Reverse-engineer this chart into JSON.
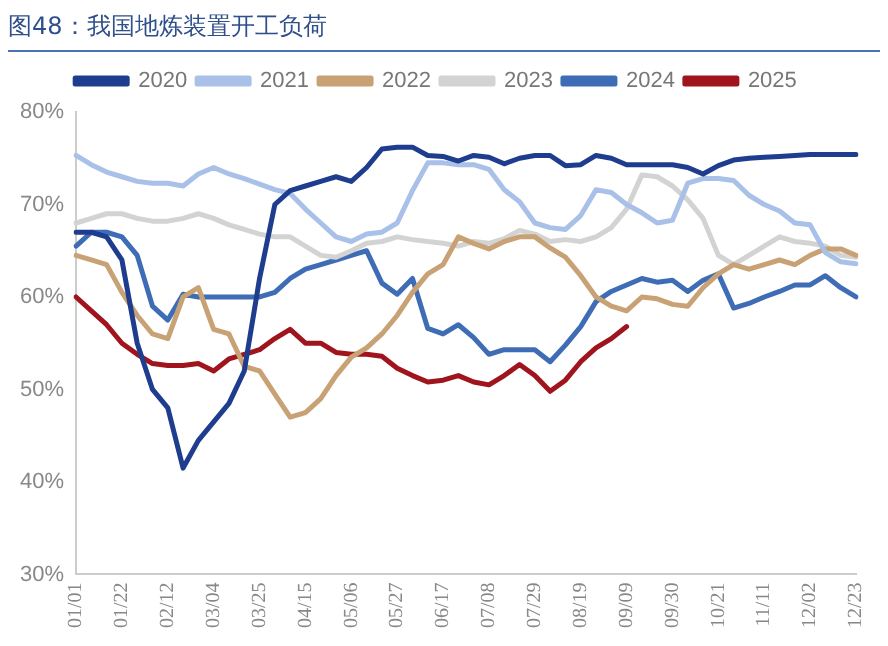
{
  "chart_data": {
    "type": "line",
    "title": "图48：我国地炼装置开工负荷",
    "categories": [
      "01/01",
      null,
      null,
      "01/22",
      null,
      null,
      "02/12",
      null,
      null,
      "03/04",
      null,
      null,
      "03/25",
      null,
      null,
      "04/15",
      null,
      null,
      "05/06",
      null,
      null,
      "05/27",
      null,
      null,
      "06/17",
      null,
      null,
      "07/08",
      null,
      null,
      "07/29",
      null,
      null,
      "08/19",
      null,
      null,
      "09/09",
      null,
      null,
      "09/30",
      null,
      null,
      "10/21",
      null,
      null,
      "11/11",
      null,
      null,
      "12/02",
      null,
      null,
      "12/23"
    ],
    "series": [
      {
        "name": "2020",
        "color": "#1f3d8f",
        "values": [
          67,
          67,
          66.5,
          64,
          55,
          50,
          48,
          41.5,
          44.5,
          46.5,
          48.5,
          52,
          62,
          70,
          71.5,
          72,
          72.5,
          73,
          72.5,
          74,
          76,
          76.2,
          76.2,
          75.3,
          75.2,
          74.7,
          75.3,
          75.1,
          74.4,
          75,
          75.3,
          75.3,
          74.2,
          74.3,
          75.3,
          75,
          74.3,
          74.3,
          74.3,
          74.3,
          74,
          73.3,
          74.2,
          74.8,
          75,
          75.1,
          75.2,
          75.3,
          75.4,
          75.4,
          75.4,
          75.4
        ]
      },
      {
        "name": "2021",
        "color": "#a9c0e8",
        "values": [
          75.3,
          74.3,
          73.5,
          73,
          72.5,
          72.3,
          72.3,
          72,
          73.3,
          74,
          73.3,
          72.8,
          72.2,
          71.6,
          71.2,
          69.5,
          68,
          66.5,
          66,
          66.8,
          67,
          68,
          71.5,
          74.5,
          74.5,
          74.3,
          74.3,
          73.8,
          71.6,
          70.3,
          68,
          67.5,
          67.3,
          68.8,
          71.6,
          71.3,
          70,
          69.1,
          68,
          68.3,
          72.3,
          72.8,
          72.8,
          72.6,
          71,
          70,
          69.3,
          68,
          67.8,
          64.8,
          63.8,
          63.6
        ]
      },
      {
        "name": "2022",
        "color": "#c8a274",
        "values": [
          64.5,
          64,
          63.5,
          60.5,
          58,
          56,
          55.5,
          60,
          61,
          56.5,
          56,
          52.5,
          52,
          49.5,
          47,
          47.5,
          49,
          51.5,
          53.5,
          54.5,
          56,
          58,
          60.5,
          62.5,
          63.5,
          66.5,
          65.8,
          65.2,
          66,
          66.5,
          66.5,
          65.3,
          64.3,
          62.3,
          60,
          59,
          58.5,
          60,
          59.8,
          59.2,
          59,
          61,
          62.5,
          63.5,
          63,
          63.5,
          64,
          63.5,
          64.5,
          65.2,
          65.2,
          64.5
        ]
      },
      {
        "name": "2023",
        "color": "#d3d3d3",
        "values": [
          68,
          68.5,
          69,
          69,
          68.5,
          68.2,
          68.2,
          68.5,
          69,
          68.5,
          67.8,
          67.3,
          66.8,
          66.5,
          66.5,
          65.5,
          64.5,
          64.3,
          65,
          65.8,
          66,
          66.5,
          66.2,
          66,
          65.8,
          65.5,
          66,
          65.8,
          66.3,
          67.2,
          66.8,
          66,
          66.2,
          66,
          66.5,
          67.5,
          69.5,
          73.2,
          73,
          72,
          70.5,
          68.5,
          64.5,
          63.5,
          64.5,
          65.5,
          66.5,
          66,
          65.8,
          65.5,
          64.5,
          64.3
        ]
      },
      {
        "name": "2024",
        "color": "#3f6db5",
        "values": [
          65.5,
          67,
          67,
          66.5,
          64.5,
          59,
          57.5,
          60.3,
          60,
          60,
          60,
          60,
          60,
          60.5,
          62,
          63,
          63.5,
          64,
          64.5,
          65,
          61.5,
          60.3,
          62,
          56.6,
          56,
          57,
          55.6,
          53.8,
          54.3,
          54.3,
          54.3,
          53,
          54.8,
          56.8,
          59.5,
          60.6,
          61.3,
          62,
          61.6,
          61.8,
          60.6,
          61.8,
          62.5,
          58.8,
          59.3,
          60,
          60.6,
          61.3,
          61.3,
          62.3,
          61,
          60
        ]
      },
      {
        "name": "2025",
        "color": "#a0141e",
        "values": [
          60,
          58.5,
          57,
          55,
          53.8,
          52.8,
          52.6,
          52.6,
          52.8,
          52,
          53.3,
          53.8,
          54.3,
          55.5,
          56.5,
          55,
          55,
          54,
          53.8,
          53.8,
          53.6,
          52.3,
          51.5,
          50.8,
          51,
          51.5,
          50.8,
          50.5,
          51.5,
          52.7,
          51.5,
          49.8,
          51,
          53,
          54.5,
          55.5,
          56.8,
          null,
          null,
          null,
          null,
          null,
          null,
          null,
          null,
          null,
          null,
          null,
          null,
          null,
          null,
          null
        ]
      }
    ],
    "ylim": [
      30,
      80
    ],
    "yticks": [
      {
        "value": 30,
        "label": "30%"
      },
      {
        "value": 40,
        "label": "40%"
      },
      {
        "value": 50,
        "label": "50%"
      },
      {
        "value": 60,
        "label": "60%"
      },
      {
        "value": 70,
        "label": "70%"
      },
      {
        "value": 80,
        "label": "80%"
      }
    ],
    "grid": false,
    "legend": "top",
    "marker": "none",
    "line_style": "solid"
  }
}
